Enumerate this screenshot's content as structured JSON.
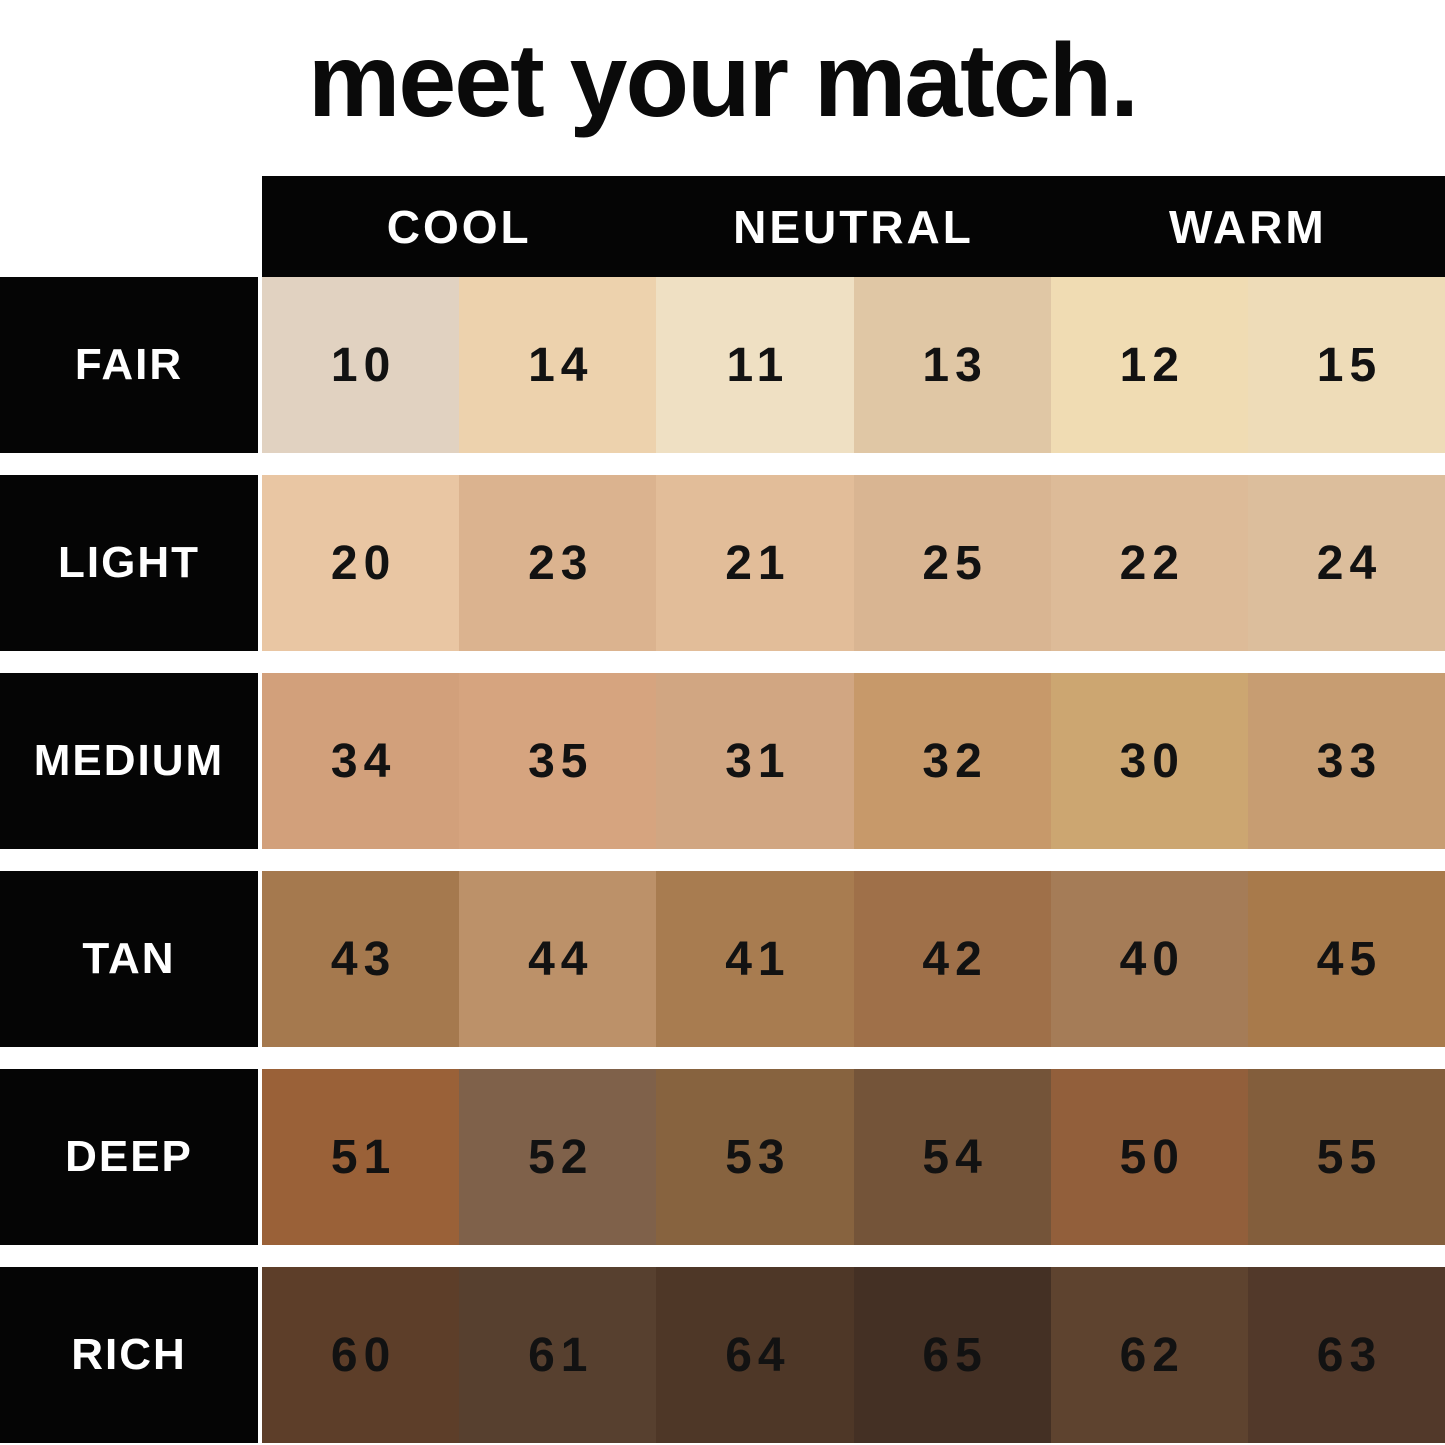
{
  "title": "meet your match.",
  "chart_data": {
    "type": "table",
    "title": "meet your match.",
    "column_headers": [
      "COOL",
      "NEUTRAL",
      "WARM"
    ],
    "row_categories": [
      "FAIR",
      "LIGHT",
      "MEDIUM",
      "TAN",
      "DEEP",
      "RICH"
    ],
    "layout_hint": "6 depth rows x 6 shade swatches; each undertone header (COOL/NEUTRAL/WARM) spans 2 swatch columns",
    "colors": {
      "background": "#FFFFFF",
      "band": "#050505",
      "header_text": "#FFFFFF",
      "number_text": "#121212"
    },
    "rows": [
      {
        "label": "FAIR",
        "shades": [
          {
            "num": "10",
            "color": "#E1D2C1"
          },
          {
            "num": "14",
            "color": "#EDD2AD"
          },
          {
            "num": "11",
            "color": "#EFE0C3"
          },
          {
            "num": "13",
            "color": "#E0C7A5"
          },
          {
            "num": "12",
            "color": "#F0DCB3"
          },
          {
            "num": "15",
            "color": "#EEDCB8"
          }
        ]
      },
      {
        "label": "LIGHT",
        "shades": [
          {
            "num": "20",
            "color": "#E9C6A3"
          },
          {
            "num": "23",
            "color": "#DBB38F"
          },
          {
            "num": "21",
            "color": "#E2BD99"
          },
          {
            "num": "25",
            "color": "#D9B592"
          },
          {
            "num": "22",
            "color": "#DDBB98"
          },
          {
            "num": "24",
            "color": "#DCBE9C"
          }
        ]
      },
      {
        "label": "MEDIUM",
        "shades": [
          {
            "num": "34",
            "color": "#D2A07B"
          },
          {
            "num": "35",
            "color": "#D6A47F"
          },
          {
            "num": "31",
            "color": "#D1A682"
          },
          {
            "num": "32",
            "color": "#C7996A"
          },
          {
            "num": "30",
            "color": "#CCA671"
          },
          {
            "num": "33",
            "color": "#C79D72"
          }
        ]
      },
      {
        "label": "TAN",
        "shades": [
          {
            "num": "43",
            "color": "#A5794E"
          },
          {
            "num": "44",
            "color": "#BC9169"
          },
          {
            "num": "41",
            "color": "#A87C50"
          },
          {
            "num": "42",
            "color": "#9F7049"
          },
          {
            "num": "40",
            "color": "#A57C57"
          },
          {
            "num": "45",
            "color": "#A87A4B"
          }
        ]
      },
      {
        "label": "DEEP",
        "shades": [
          {
            "num": "51",
            "color": "#9A6138"
          },
          {
            "num": "52",
            "color": "#7F614A"
          },
          {
            "num": "53",
            "color": "#87633F"
          },
          {
            "num": "54",
            "color": "#745439"
          },
          {
            "num": "50",
            "color": "#925F3B"
          },
          {
            "num": "55",
            "color": "#835E3C"
          }
        ]
      },
      {
        "label": "RICH",
        "shades": [
          {
            "num": "60",
            "color": "#5D3E29"
          },
          {
            "num": "61",
            "color": "#57402F"
          },
          {
            "num": "64",
            "color": "#4E3727"
          },
          {
            "num": "65",
            "color": "#443024"
          },
          {
            "num": "62",
            "color": "#5E432F"
          },
          {
            "num": "63",
            "color": "#52392A"
          }
        ]
      }
    ]
  }
}
